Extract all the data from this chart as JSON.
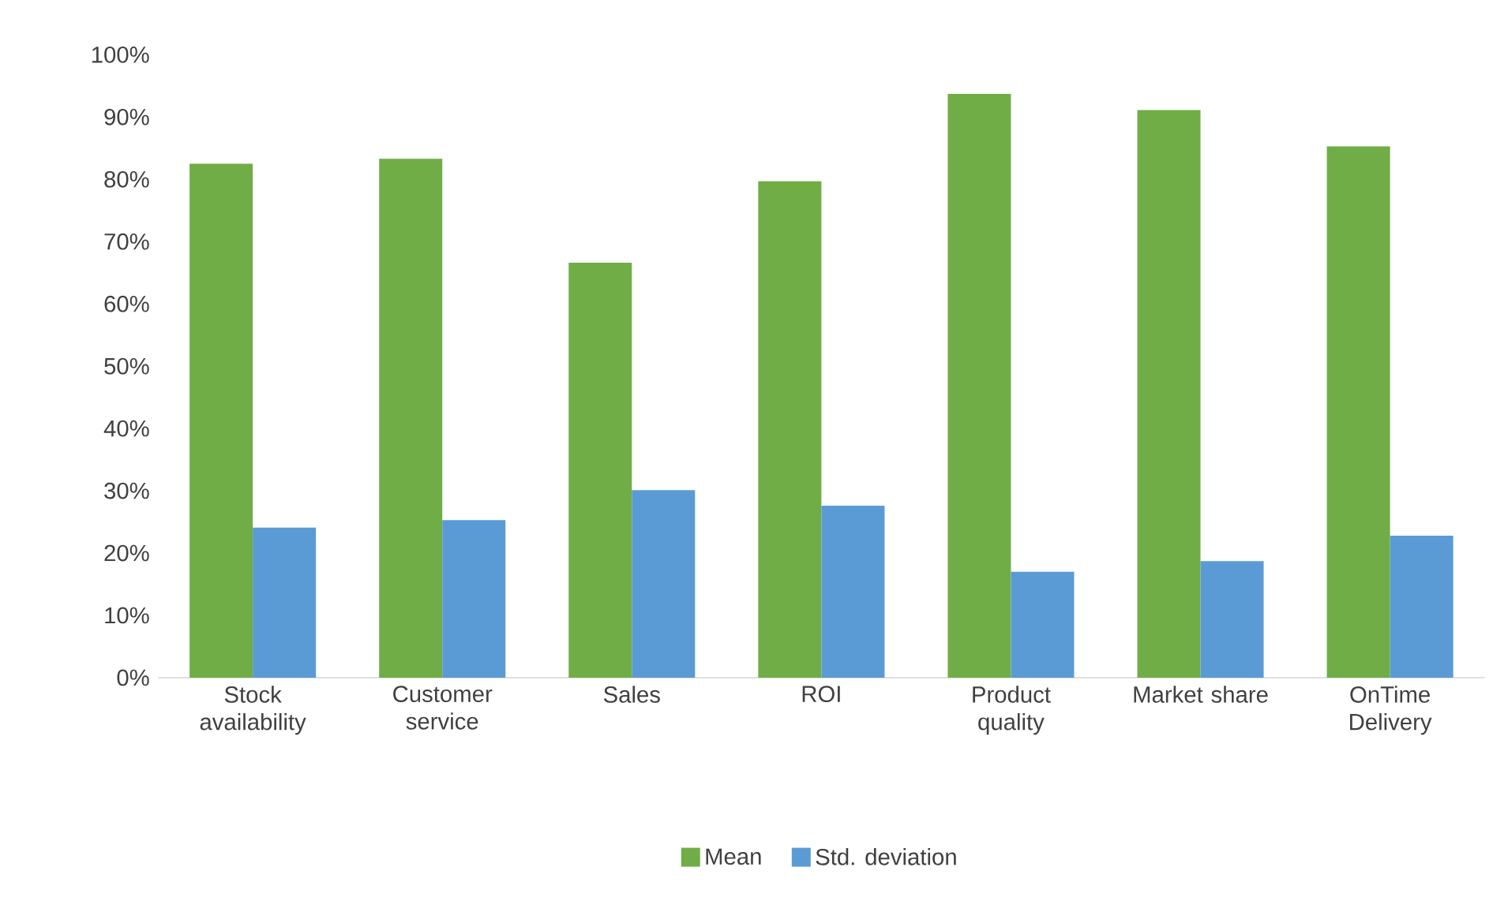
{
  "chart_data": {
    "type": "bar",
    "categories": [
      "Stock availability",
      "Customer service",
      "Sales",
      "ROI",
      "Product quality",
      "Market share",
      "OnTime Delivery"
    ],
    "series": [
      {
        "name": "Mean",
        "color": "#70ad47",
        "values": [
          82.5,
          83.3,
          66.6,
          79.7,
          93.7,
          91.1,
          85.3
        ]
      },
      {
        "name": "Std. deviation",
        "color": "#5b9bd5",
        "values": [
          24.1,
          25.3,
          30.1,
          27.6,
          17.0,
          18.7,
          22.8
        ]
      }
    ],
    "ylim": [
      0,
      100
    ],
    "yticks": [
      {
        "value": 0,
        "label": "0%"
      },
      {
        "value": 10,
        "label": "10%"
      },
      {
        "value": 20,
        "label": "20%"
      },
      {
        "value": 30,
        "label": "30%"
      },
      {
        "value": 40,
        "label": "40%"
      },
      {
        "value": 50,
        "label": "50%"
      },
      {
        "value": 60,
        "label": "60%"
      },
      {
        "value": 70,
        "label": "70%"
      },
      {
        "value": 80,
        "label": "80%"
      },
      {
        "value": 90,
        "label": "90%"
      },
      {
        "value": 100,
        "label": "100%"
      }
    ],
    "grid": false,
    "legend": "bottom"
  }
}
